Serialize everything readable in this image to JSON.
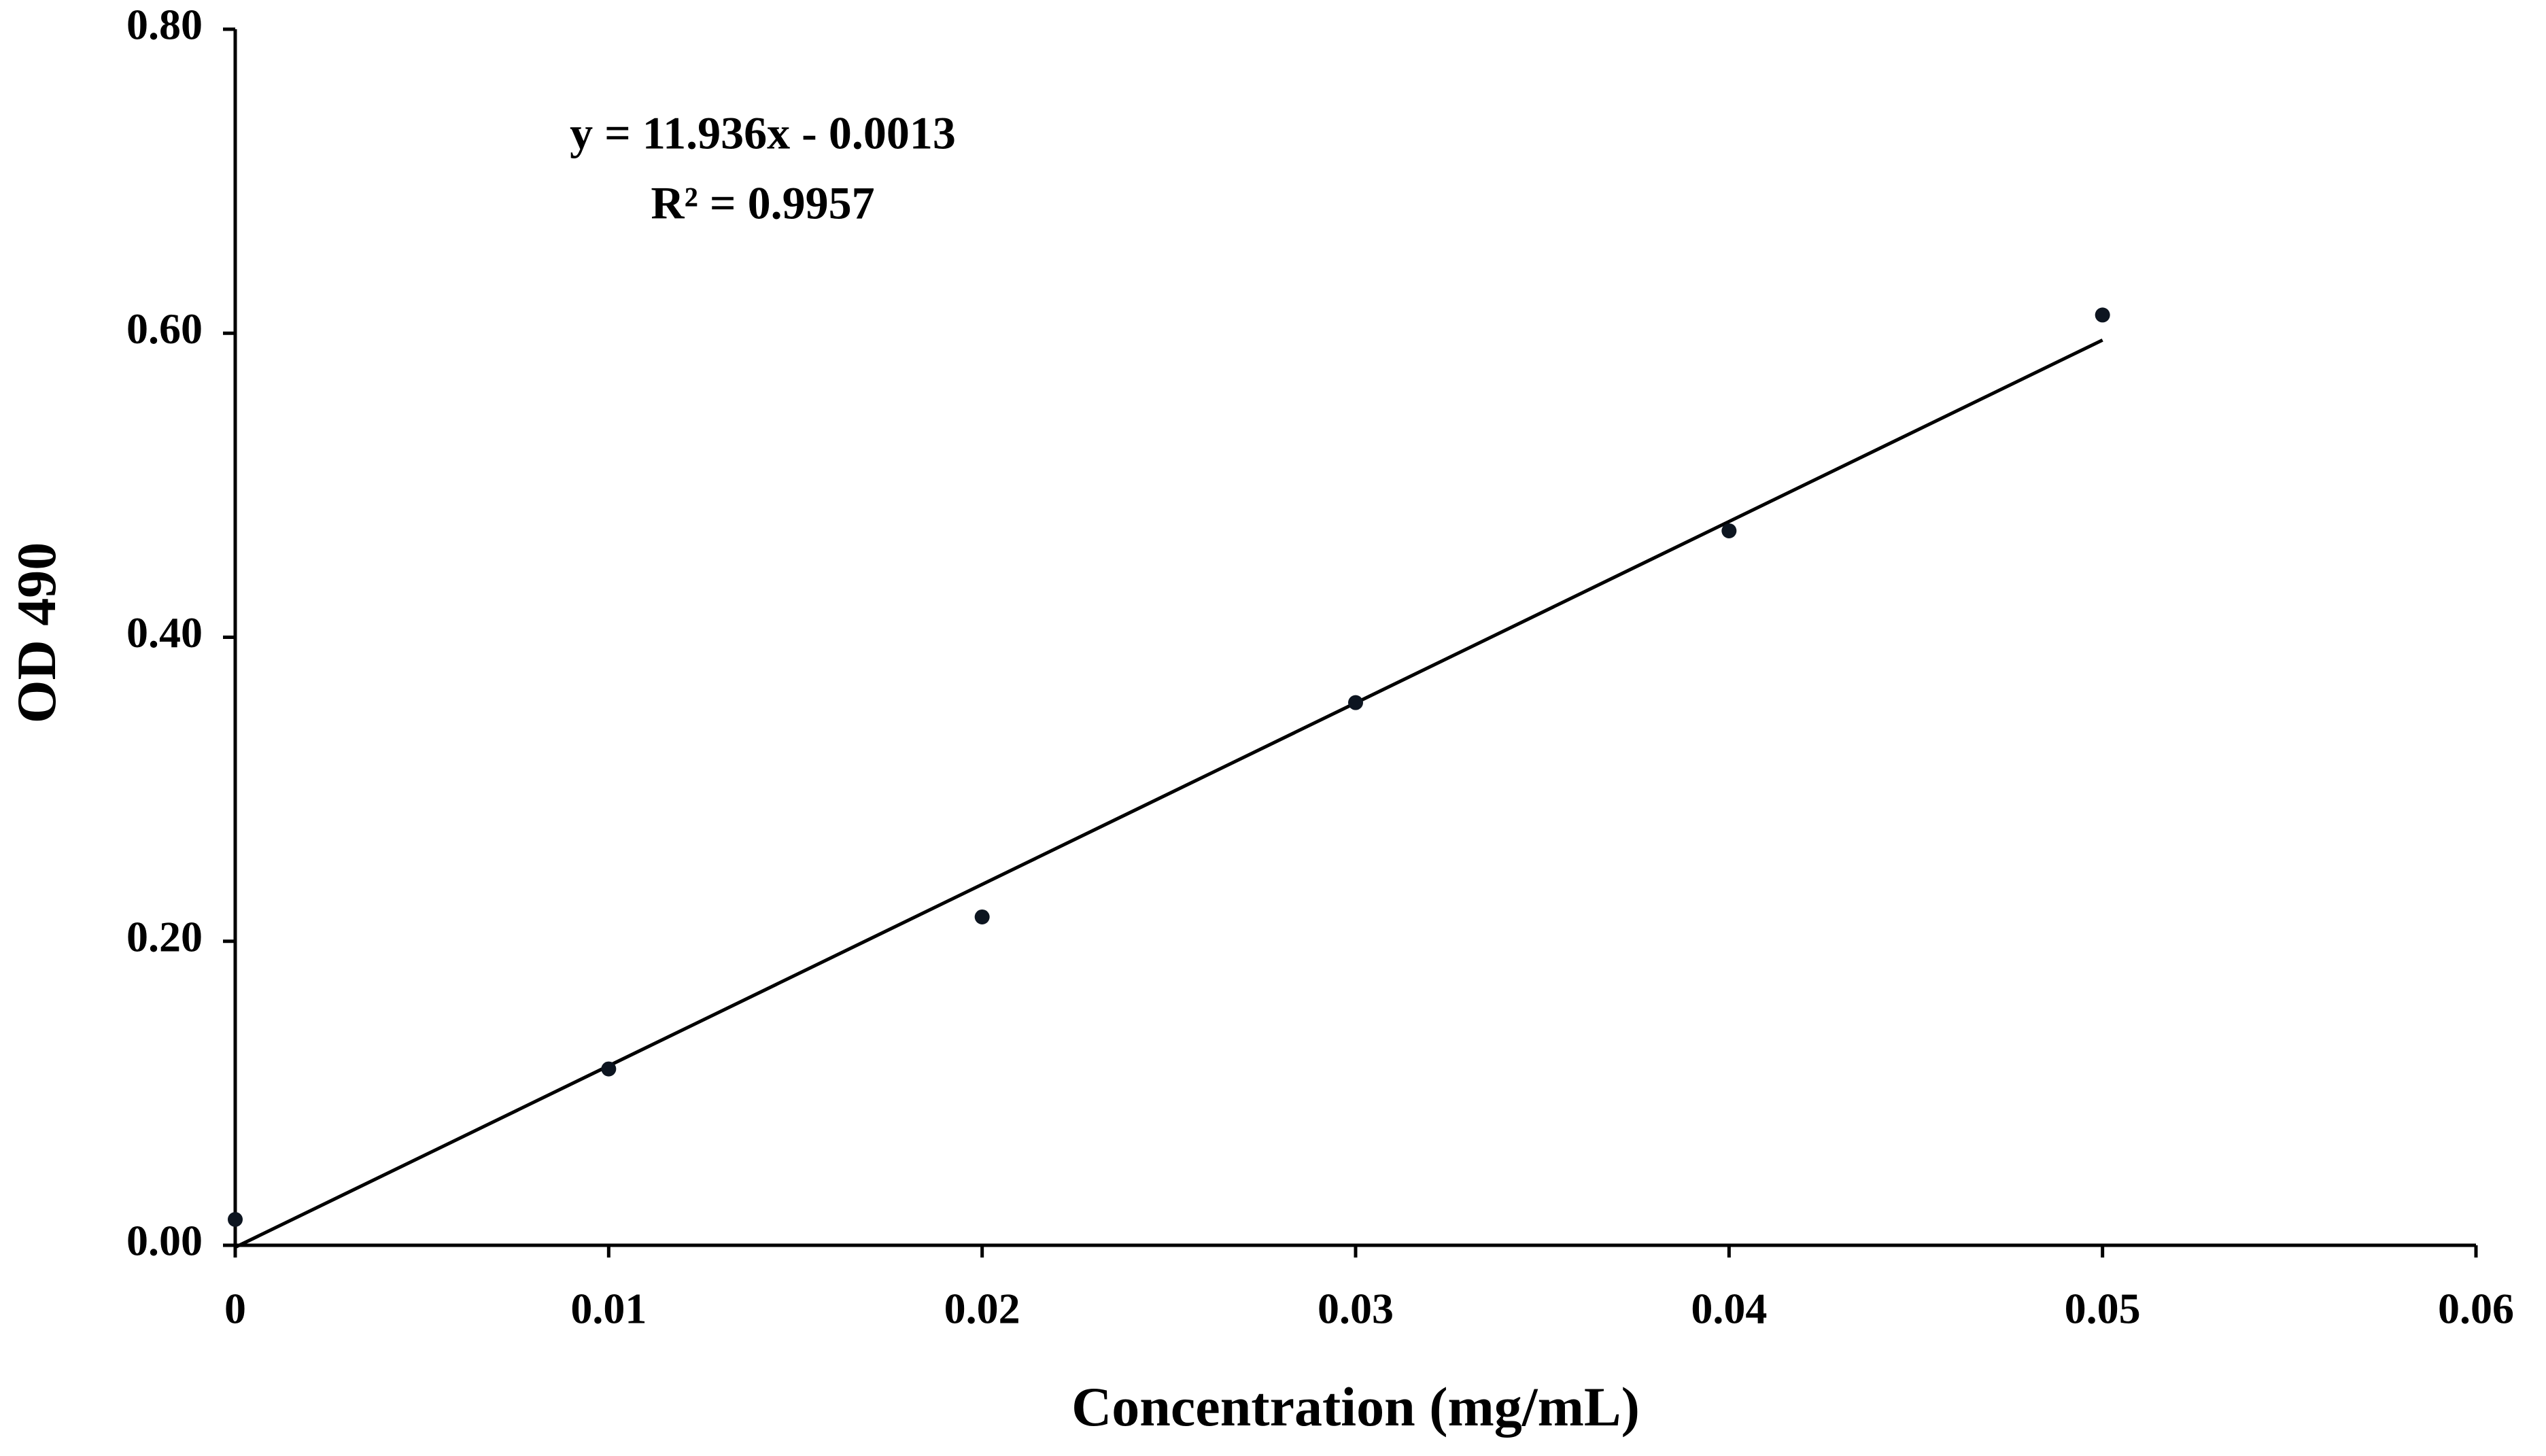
{
  "chart_data": {
    "type": "scatter",
    "xlabel": "Concentration (mg/mL)",
    "ylabel": "OD 490",
    "x": [
      0,
      0.01,
      0.02,
      0.03,
      0.04,
      0.05
    ],
    "values": [
      0.017,
      0.116,
      0.216,
      0.357,
      0.47,
      0.612
    ],
    "color": "#0d1520",
    "trendline": {
      "slope": 11.936,
      "intercept": -0.0013,
      "color": "#000000"
    },
    "annotations": [
      "y = 11.936x - 0.0013",
      "R² = 0.9957"
    ],
    "xlim": [
      0,
      0.06
    ],
    "xticks": [
      0,
      0.01,
      0.02,
      0.03,
      0.04,
      0.05,
      0.06
    ],
    "ylim": [
      0,
      0.8
    ],
    "yticks": [
      {
        "value": 0,
        "label": "0.00"
      },
      {
        "value": 0.2,
        "label": "0.20"
      },
      {
        "value": 0.4,
        "label": "0.40"
      },
      {
        "value": 0.6,
        "label": "0.60"
      },
      {
        "value": 0.8,
        "label": "0.80"
      }
    ],
    "grid": false
  }
}
